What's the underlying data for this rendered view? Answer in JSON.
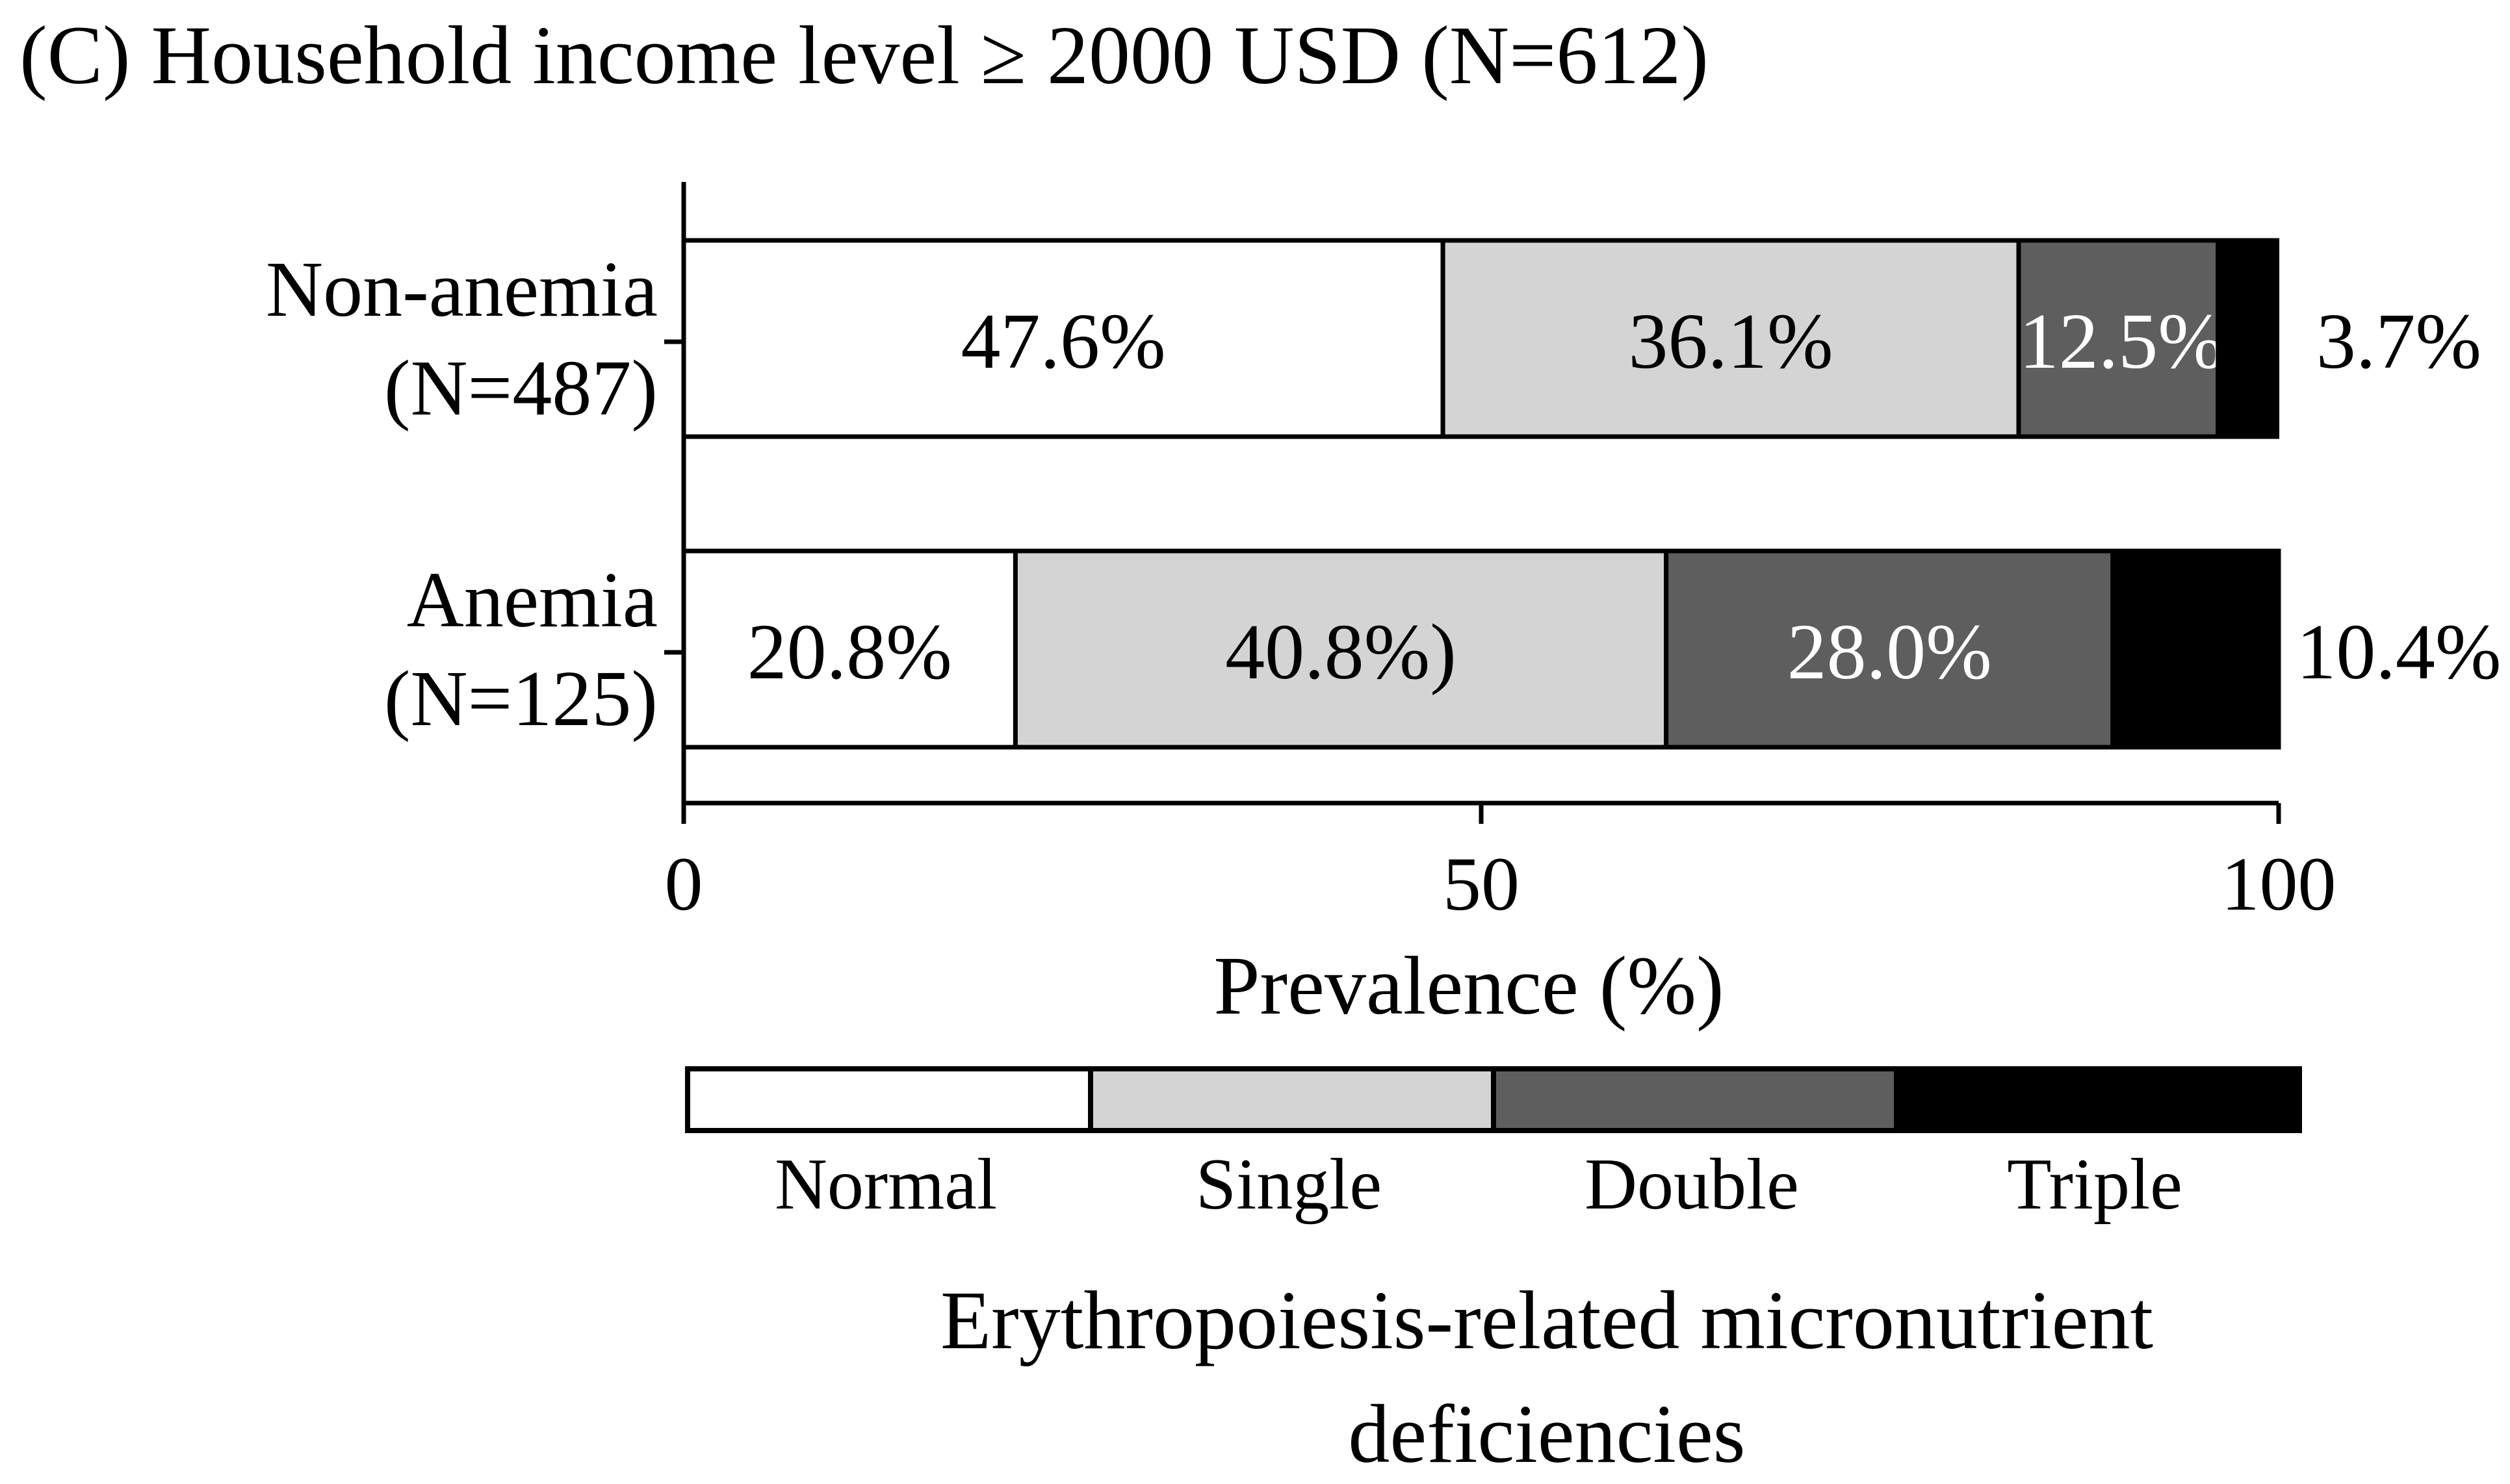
{
  "chart_data": {
    "type": "bar",
    "orientation": "horizontal",
    "stacked": true,
    "title": "(C) Household income level ≥ 2000 USD (N=612)",
    "xlabel": "Prevalence (%)",
    "ylabel": "",
    "xlim": [
      0,
      100
    ],
    "x_ticks": [
      {
        "value": 0,
        "label": "0"
      },
      {
        "value": 50,
        "label": "50"
      },
      {
        "value": 100,
        "label": "100"
      }
    ],
    "categories": [
      {
        "line1": "Non-anemia",
        "line2": "(N=487)"
      },
      {
        "line1": "Anemia",
        "line2": "(N=125)"
      }
    ],
    "series": [
      {
        "name": "Normal",
        "color": "#ffffff",
        "label_color": "#000000",
        "values": [
          47.6,
          20.8
        ],
        "labels": [
          "47.6%",
          "20.8%"
        ]
      },
      {
        "name": "Single",
        "color": "#d4d4d4",
        "label_color": "#000000",
        "values": [
          36.1,
          40.8
        ],
        "labels": [
          "36.1%",
          "40.8%)"
        ]
      },
      {
        "name": "Double",
        "color": "#5e5e5e",
        "label_color": "#ffffff",
        "values": [
          12.5,
          28.0
        ],
        "labels": [
          "12.5%",
          "28.0%"
        ]
      },
      {
        "name": "Triple",
        "color": "#000000",
        "label_color": "#000000",
        "values": [
          3.7,
          10.4
        ],
        "labels": [
          "3.7%",
          "10.4%"
        ]
      }
    ],
    "legend": {
      "placement": "bottom",
      "title_line1": "Erythropoiesis-related micronutrient",
      "title_line2": "deficiencies"
    },
    "grid": false
  }
}
